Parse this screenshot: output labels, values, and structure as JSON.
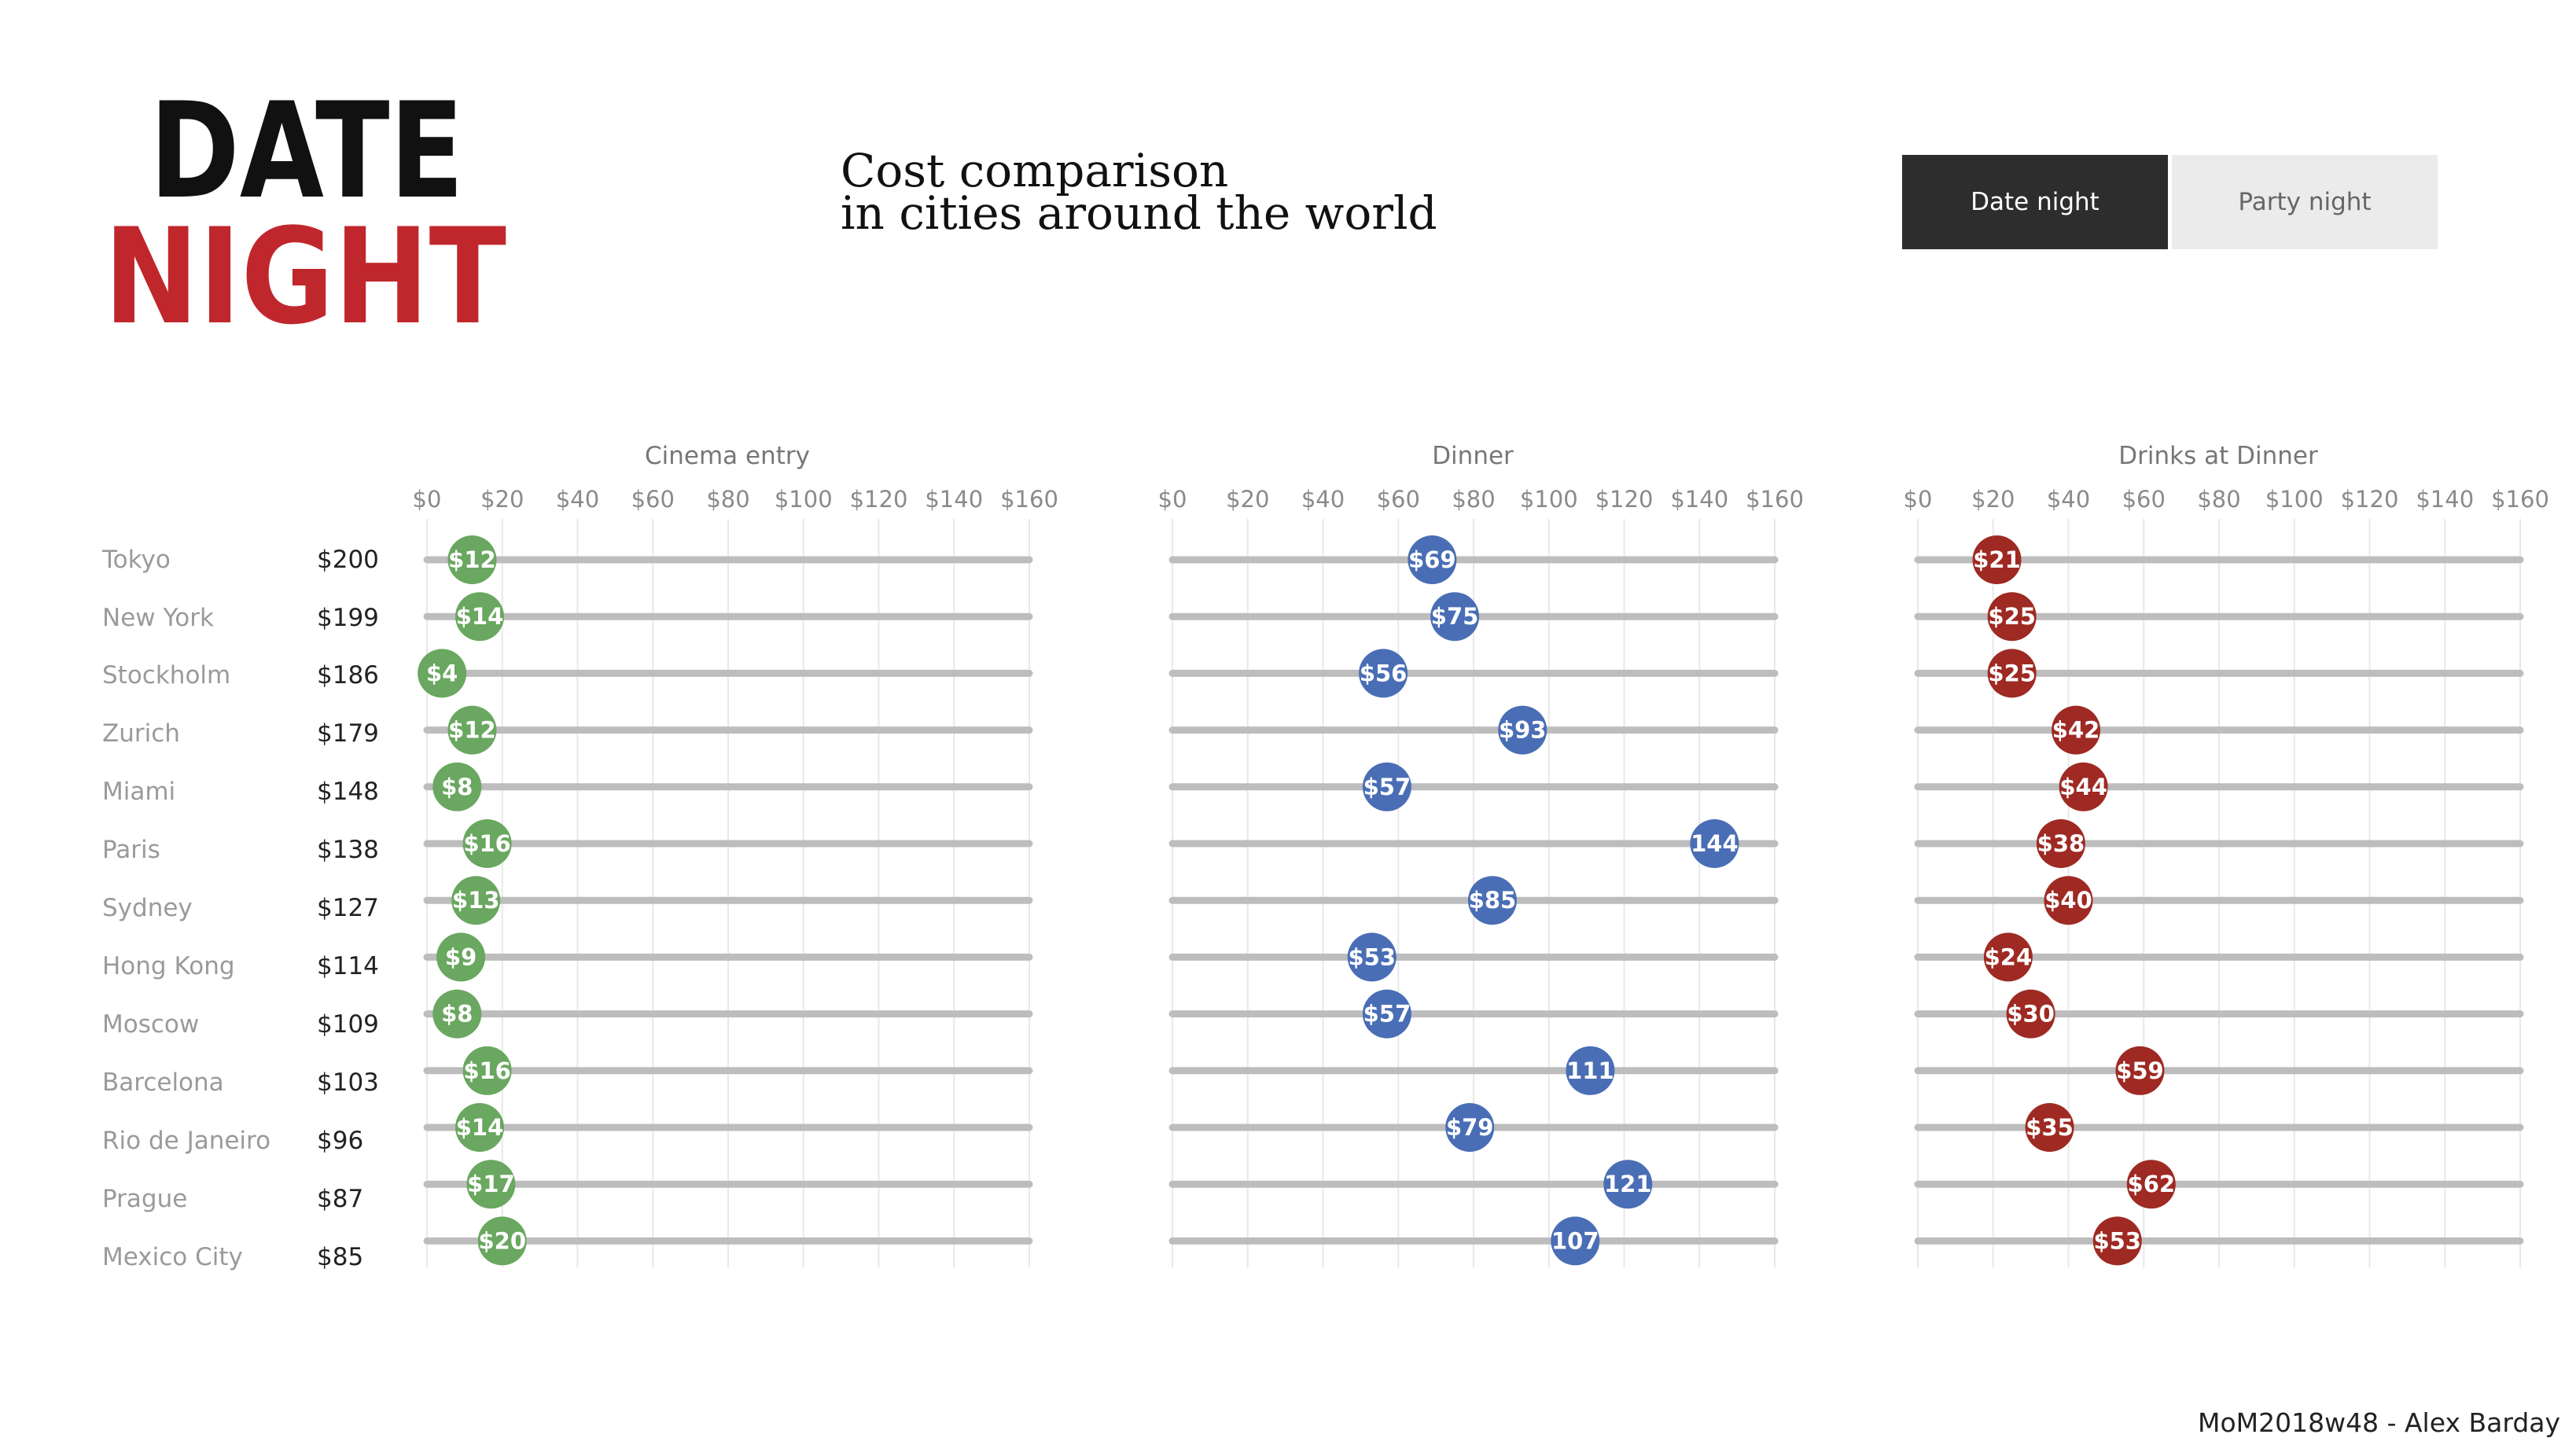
{
  "logo": {
    "line1": "DATE",
    "line2": "NIGHT"
  },
  "title": {
    "line1": "Cost comparison",
    "line2": "in cities around the world"
  },
  "toggles": {
    "selected": "Date night",
    "other": "Party night"
  },
  "footer": "MoM2018w48 - Alex Barday",
  "colors": {
    "cinema": "#6aa760",
    "dinner": "#4a6eb5",
    "drinks": "#9e2a23",
    "track": "#bdbdbd",
    "grid": "#e8e8e8"
  },
  "cities": [
    "Tokyo",
    "New York",
    "Stockholm",
    "Zurich",
    "Miami",
    "Paris",
    "Sydney",
    "Hong Kong",
    "Moscow",
    "Barcelona",
    "Rio de Janeiro",
    "Prague",
    "Mexico City"
  ],
  "totals": [
    "$200",
    "$199",
    "$186",
    "$179",
    "$148",
    "$138",
    "$127",
    "$114",
    "$109",
    "$103",
    "$96",
    "$87",
    "$85"
  ],
  "chart_data": [
    {
      "type": "scatter",
      "title": "Cinema entry",
      "categories": [
        "Tokyo",
        "New York",
        "Stockholm",
        "Zurich",
        "Miami",
        "Paris",
        "Sydney",
        "Hong Kong",
        "Moscow",
        "Barcelona",
        "Rio de Janeiro",
        "Prague",
        "Mexico City"
      ],
      "values": [
        12,
        14,
        4,
        12,
        8,
        16,
        13,
        9,
        8,
        16,
        14,
        17,
        20
      ],
      "labels": [
        "$12",
        "$14",
        "$4",
        "$12",
        "$8",
        "$16",
        "$13",
        "$9",
        "$8",
        "$16",
        "$14",
        "$17",
        "$20"
      ],
      "xlim": [
        0,
        160
      ],
      "xticks": [
        "$0",
        "$20",
        "$40",
        "$60",
        "$80",
        "$100",
        "$120",
        "$140",
        "$160"
      ],
      "grid": true
    },
    {
      "type": "scatter",
      "title": "Dinner",
      "categories": [
        "Tokyo",
        "New York",
        "Stockholm",
        "Zurich",
        "Miami",
        "Paris",
        "Sydney",
        "Hong Kong",
        "Moscow",
        "Barcelona",
        "Rio de Janeiro",
        "Prague",
        "Mexico City"
      ],
      "values": [
        69,
        75,
        56,
        93,
        57,
        144,
        85,
        53,
        57,
        111,
        79,
        121,
        107
      ],
      "labels": [
        "$69",
        "$75",
        "$56",
        "$93",
        "$57",
        "144",
        "$85",
        "$53",
        "$57",
        "111",
        "$79",
        "121",
        "107"
      ],
      "xlim": [
        0,
        160
      ],
      "xticks": [
        "$0",
        "$20",
        "$40",
        "$60",
        "$80",
        "$100",
        "$120",
        "$140",
        "$160"
      ],
      "grid": true
    },
    {
      "type": "scatter",
      "title": "Drinks at Dinner",
      "categories": [
        "Tokyo",
        "New York",
        "Stockholm",
        "Zurich",
        "Miami",
        "Paris",
        "Sydney",
        "Hong Kong",
        "Moscow",
        "Barcelona",
        "Rio de Janeiro",
        "Prague",
        "Mexico City"
      ],
      "values": [
        21,
        25,
        25,
        42,
        44,
        38,
        40,
        24,
        30,
        59,
        35,
        62,
        53
      ],
      "labels": [
        "$21",
        "$25",
        "$25",
        "$42",
        "$44",
        "$38",
        "$40",
        "$24",
        "$30",
        "$59",
        "$35",
        "$62",
        "$53"
      ],
      "xlim": [
        0,
        160
      ],
      "xticks": [
        "$0",
        "$20",
        "$40",
        "$60",
        "$80",
        "$100",
        "$120",
        "$140",
        "$160"
      ],
      "grid": true
    }
  ]
}
